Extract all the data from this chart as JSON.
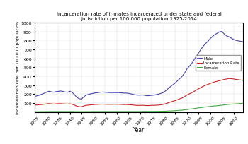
{
  "title": "Incarceration rate of inmates incarcerated under state and federal\njurisdiction per 100,000 population 1925-2014",
  "xlabel": "Year",
  "ylabel": "Incarceration rate per 100,000 population",
  "xlim": [
    1925,
    2014
  ],
  "ylim": [
    0,
    1000
  ],
  "yticks": [
    100,
    200,
    300,
    400,
    500,
    600,
    700,
    800,
    900,
    1000
  ],
  "xticks": [
    1925,
    1930,
    1935,
    1940,
    1945,
    1950,
    1955,
    1960,
    1965,
    1970,
    1975,
    1980,
    1985,
    1990,
    1995,
    2000,
    2005,
    2010
  ],
  "years": [
    1925,
    1926,
    1927,
    1928,
    1929,
    1930,
    1931,
    1932,
    1933,
    1934,
    1935,
    1936,
    1937,
    1938,
    1939,
    1940,
    1941,
    1942,
    1943,
    1944,
    1945,
    1946,
    1947,
    1948,
    1949,
    1950,
    1951,
    1952,
    1953,
    1954,
    1955,
    1956,
    1957,
    1958,
    1959,
    1960,
    1961,
    1962,
    1963,
    1964,
    1965,
    1966,
    1967,
    1968,
    1969,
    1970,
    1971,
    1972,
    1973,
    1974,
    1975,
    1976,
    1977,
    1978,
    1979,
    1980,
    1981,
    1982,
    1983,
    1984,
    1985,
    1986,
    1987,
    1988,
    1989,
    1990,
    1991,
    1992,
    1993,
    1994,
    1995,
    1996,
    1997,
    1998,
    1999,
    2000,
    2001,
    2002,
    2003,
    2004,
    2005,
    2006,
    2007,
    2008,
    2009,
    2010,
    2011,
    2012,
    2013,
    2014
  ],
  "male": [
    175,
    183,
    189,
    200,
    211,
    222,
    233,
    228,
    222,
    228,
    232,
    236,
    232,
    225,
    222,
    233,
    220,
    195,
    165,
    150,
    145,
    173,
    190,
    198,
    205,
    210,
    215,
    218,
    222,
    225,
    222,
    220,
    218,
    218,
    218,
    218,
    218,
    215,
    213,
    213,
    210,
    205,
    198,
    193,
    190,
    190,
    192,
    188,
    183,
    185,
    188,
    190,
    196,
    202,
    210,
    220,
    240,
    263,
    285,
    305,
    325,
    350,
    375,
    400,
    435,
    480,
    510,
    540,
    580,
    620,
    660,
    700,
    735,
    765,
    790,
    820,
    845,
    865,
    880,
    895,
    900,
    870,
    850,
    840,
    825,
    810,
    800,
    795,
    790,
    785
  ],
  "incarceration_rate": [
    79,
    81,
    83,
    85,
    88,
    92,
    95,
    93,
    90,
    92,
    94,
    95,
    93,
    91,
    90,
    93,
    88,
    79,
    67,
    61,
    59,
    70,
    76,
    79,
    82,
    84,
    86,
    87,
    89,
    90,
    88,
    88,
    87,
    87,
    88,
    88,
    87,
    86,
    85,
    85,
    84,
    82,
    80,
    77,
    75,
    76,
    77,
    75,
    73,
    74,
    76,
    76,
    78,
    80,
    83,
    87,
    95,
    104,
    113,
    121,
    129,
    139,
    149,
    159,
    173,
    191,
    203,
    215,
    230,
    245,
    260,
    275,
    288,
    300,
    310,
    320,
    330,
    338,
    345,
    352,
    358,
    365,
    370,
    375,
    373,
    370,
    365,
    362,
    358,
    355
  ],
  "female": [
    6,
    6,
    6,
    7,
    7,
    7,
    8,
    8,
    8,
    8,
    8,
    8,
    8,
    8,
    8,
    8,
    8,
    7,
    7,
    7,
    6,
    7,
    7,
    7,
    8,
    8,
    8,
    8,
    8,
    8,
    8,
    8,
    8,
    8,
    8,
    8,
    8,
    8,
    8,
    8,
    8,
    8,
    8,
    8,
    8,
    8,
    9,
    9,
    9,
    9,
    9,
    9,
    10,
    10,
    10,
    11,
    12,
    13,
    14,
    15,
    17,
    19,
    21,
    23,
    26,
    30,
    33,
    36,
    40,
    44,
    48,
    51,
    55,
    58,
    61,
    64,
    67,
    70,
    72,
    75,
    78,
    81,
    84,
    87,
    89,
    91,
    93,
    95,
    97,
    99
  ],
  "male_color": "#4444aa",
  "rate_color": "#cc2222",
  "female_color": "#44aa44",
  "background_color": "#ffffff",
  "legend_labels": [
    "Male",
    "Incarceration Rate",
    "Female"
  ]
}
